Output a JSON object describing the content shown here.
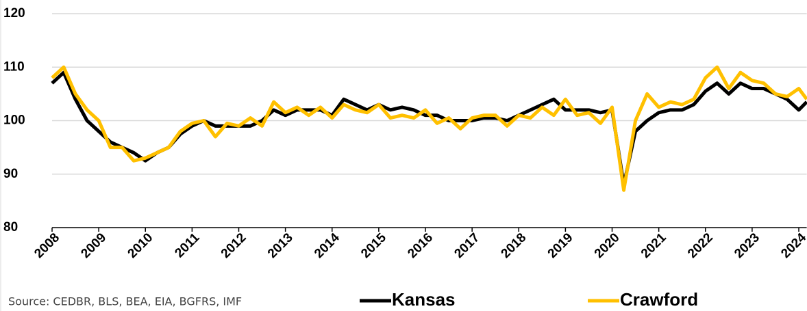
{
  "chart_data": {
    "type": "line",
    "source": "Source: CEDBR, BLS, BEA, EIA, BGFRS, IMF",
    "x": [
      2008,
      2008.25,
      2008.5,
      2008.75,
      2009,
      2009.25,
      2009.5,
      2009.75,
      2010,
      2010.25,
      2010.5,
      2010.75,
      2011,
      2011.25,
      2011.5,
      2011.75,
      2012,
      2012.25,
      2012.5,
      2012.75,
      2013,
      2013.25,
      2013.5,
      2013.75,
      2014,
      2014.25,
      2014.5,
      2014.75,
      2015,
      2015.25,
      2015.5,
      2015.75,
      2016,
      2016.25,
      2016.5,
      2016.75,
      2017,
      2017.25,
      2017.5,
      2017.75,
      2018,
      2018.25,
      2018.5,
      2018.75,
      2019,
      2019.25,
      2019.5,
      2019.75,
      2020,
      2020.25,
      2020.5,
      2020.75,
      2021,
      2021.25,
      2021.5,
      2021.75,
      2022,
      2022.25,
      2022.5,
      2022.75,
      2023,
      2023.25,
      2023.5,
      2023.75,
      2024,
      2024.17
    ],
    "series": [
      {
        "name": "Kansas",
        "color": "#000000",
        "values": [
          107,
          109,
          104,
          100,
          98,
          96,
          95,
          94,
          92.5,
          94,
          95,
          97.5,
          99,
          100,
          99,
          99,
          99,
          99,
          100,
          102,
          101,
          102,
          102,
          102,
          101,
          104,
          103,
          102,
          103,
          102,
          102.5,
          102,
          101,
          101,
          100,
          100,
          100,
          100.5,
          100.5,
          100,
          101,
          102,
          103,
          104,
          102,
          102,
          102,
          101.5,
          102,
          88,
          98,
          100,
          101.5,
          102,
          102,
          103,
          105.5,
          107,
          105,
          107,
          106,
          106,
          105,
          104,
          102,
          103.5
        ]
      },
      {
        "name": "Crawford",
        "color": "#ffc000",
        "values": [
          108,
          110,
          105,
          102,
          100,
          95,
          95,
          92.5,
          93,
          94,
          95,
          98,
          99.5,
          100,
          97,
          99.5,
          99,
          100.5,
          99,
          103.5,
          101.5,
          102.5,
          101,
          102.5,
          100.5,
          103,
          102,
          101.5,
          103,
          100.5,
          101,
          100.5,
          102,
          99.5,
          100.5,
          98.5,
          100.5,
          101,
          101,
          99,
          101,
          100.5,
          102.5,
          101,
          104,
          101,
          101.5,
          99.5,
          102.5,
          87,
          100,
          105,
          102.5,
          103.5,
          103,
          104,
          108,
          110,
          106,
          109,
          107.5,
          107,
          105,
          104.5,
          106,
          104
        ]
      }
    ],
    "xlim": [
      2008,
      2024.17
    ],
    "xticks": [
      2008,
      2009,
      2010,
      2011,
      2012,
      2013,
      2014,
      2015,
      2016,
      2017,
      2018,
      2019,
      2020,
      2021,
      2022,
      2023,
      2024
    ],
    "ylim": [
      80,
      120
    ],
    "yticks": [
      80,
      90,
      100,
      110,
      120
    ],
    "grid": true,
    "legend": "bottom"
  }
}
